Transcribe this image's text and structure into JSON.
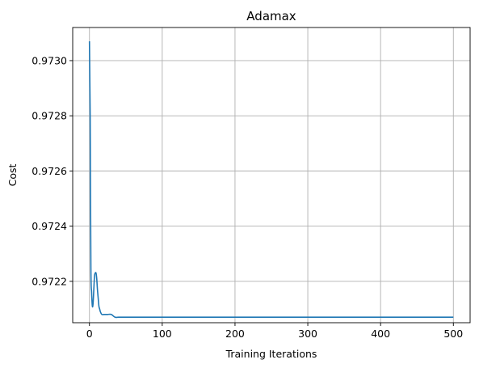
{
  "chart_data": {
    "type": "line",
    "title": "Adamax",
    "xlabel": "Training Iterations",
    "ylabel": "Cost",
    "xlim": [
      -23,
      523
    ],
    "ylim": [
      0.97205,
      0.97312
    ],
    "xticks": [
      0,
      100,
      200,
      300,
      400,
      500
    ],
    "xtick_labels": [
      "0",
      "100",
      "200",
      "300",
      "400",
      "500"
    ],
    "yticks": [
      0.9722,
      0.9724,
      0.9726,
      0.9728,
      0.973
    ],
    "ytick_labels": [
      "0.9722",
      "0.9724",
      "0.9726",
      "0.9728",
      "0.9730"
    ],
    "grid": true,
    "color": "#1f77b4",
    "series": [
      {
        "name": "",
        "x": [
          0,
          1,
          2,
          3,
          4,
          5,
          6,
          7,
          8,
          9,
          10,
          11,
          12,
          13,
          14,
          15,
          17,
          20,
          25,
          30,
          35,
          40,
          45,
          50,
          55,
          60,
          80,
          100,
          200,
          300,
          400,
          500
        ],
        "y": [
          0.97307,
          0.9728,
          0.97225,
          0.97216,
          0.97211,
          0.97212,
          0.97217,
          0.97222,
          0.97223,
          0.97223,
          0.97221,
          0.97217,
          0.97214,
          0.97211,
          0.9721,
          0.97209,
          0.97208,
          0.97208,
          0.97208,
          0.97208,
          0.97207,
          0.97207,
          0.97207,
          0.97207,
          0.97207,
          0.97207,
          0.97207,
          0.97207,
          0.97207,
          0.97207,
          0.97207,
          0.97207
        ]
      }
    ]
  }
}
